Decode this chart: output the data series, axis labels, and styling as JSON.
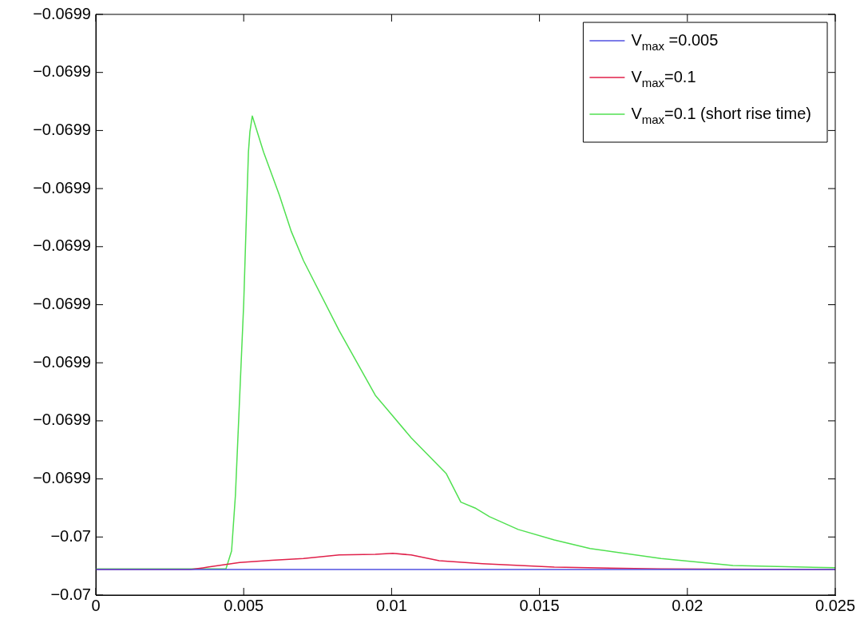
{
  "chart_data": {
    "type": "line",
    "xlim": [
      0,
      0.025
    ],
    "xticks": [
      0,
      0.005,
      0.01,
      0.015,
      0.02,
      0.025
    ],
    "ylim": [
      -0.0699515,
      -0.0699415
    ],
    "yticks": [
      {
        "value": -0.0699515,
        "label": "−0.07"
      },
      {
        "value": -0.0699505,
        "label": "−0.07"
      },
      {
        "value": -0.0699495,
        "label": "−0.0699"
      },
      {
        "value": -0.0699485,
        "label": "−0.0699"
      },
      {
        "value": -0.0699475,
        "label": "−0.0699"
      },
      {
        "value": -0.0699465,
        "label": "−0.0699"
      },
      {
        "value": -0.0699455,
        "label": "−0.0699"
      },
      {
        "value": -0.0699445,
        "label": "−0.0699"
      },
      {
        "value": -0.0699435,
        "label": "−0.0699"
      },
      {
        "value": -0.0699425,
        "label": "−0.0699"
      },
      {
        "value": -0.0699415,
        "label": "−0.0699"
      }
    ],
    "legend": "top right",
    "marker": "none",
    "line_style": "solid",
    "series": [
      {
        "name": "V$_{max}$ =0.005",
        "color": "#5050e0",
        "x": [
          0,
          0.025
        ],
        "values": [
          -0.06995106,
          -0.06995106
        ]
      },
      {
        "name": "V$_{max}$=0.1",
        "color": "#e0204a",
        "x": [
          0,
          0.00319,
          0.00378,
          0.00486,
          0.00594,
          0.00702,
          0.00823,
          0.00945,
          0.01004,
          0.01066,
          0.01161,
          0.01307,
          0.0155,
          0.01911,
          0.025
        ],
        "values": [
          -0.06995106,
          -0.06995106,
          -0.06995102,
          -0.06995094,
          -0.0699509,
          -0.06995087,
          -0.06995081,
          -0.0699508,
          -0.06995078,
          -0.06995081,
          -0.06995091,
          -0.06995096,
          -0.06995102,
          -0.06995105,
          -0.06995106
        ]
      },
      {
        "name": "V$_{max}$=0.1 (short rise time)",
        "color": "#50e050",
        "x": [
          0,
          0.0044,
          0.00459,
          0.00472,
          0.00486,
          0.005,
          0.0051,
          0.00516,
          0.00521,
          0.00529,
          0.00567,
          0.00621,
          0.00661,
          0.00702,
          0.00823,
          0.00945,
          0.01066,
          0.01185,
          0.01234,
          0.01282,
          0.01331,
          0.01428,
          0.0155,
          0.01671,
          0.01911,
          0.02154,
          0.025
        ],
        "values": [
          -0.06995105,
          -0.06995105,
          -0.06995074,
          -0.06994978,
          -0.06994813,
          -0.06994648,
          -0.06994483,
          -0.06994387,
          -0.06994352,
          -0.06994325,
          -0.06994387,
          -0.06994462,
          -0.06994524,
          -0.06994574,
          -0.06994695,
          -0.06994806,
          -0.06994879,
          -0.06994941,
          -0.0699499,
          -0.06995,
          -0.06995015,
          -0.06995037,
          -0.06995055,
          -0.0699507,
          -0.06995087,
          -0.06995099,
          -0.06995103
        ]
      }
    ]
  }
}
